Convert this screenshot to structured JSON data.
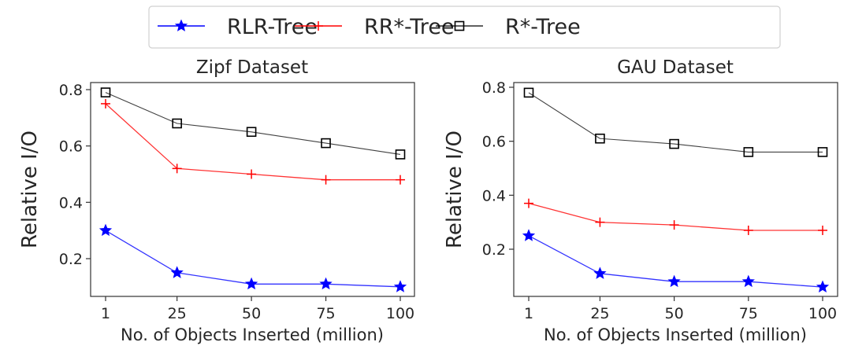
{
  "legend": {
    "placement": "top-center",
    "entries": [
      {
        "label": "RLR-Tree",
        "color": "#0000ff",
        "marker": "star-icon"
      },
      {
        "label": "RR*-Tree",
        "color": "#ff0000",
        "marker": "plus-icon"
      },
      {
        "label": "R*-Tree",
        "color": "#000000",
        "marker": "square-icon"
      }
    ]
  },
  "chart_data": [
    {
      "type": "line",
      "title": "Zipf Dataset",
      "xlabel": "No. of Objects Inserted (million)",
      "ylabel": "Relative I/O",
      "categories": [
        "1",
        "25",
        "50",
        "75",
        "100"
      ],
      "yticks": [
        0.2,
        0.4,
        0.6,
        0.8
      ],
      "ylim": [
        0.06,
        0.83
      ],
      "grid": false,
      "series": [
        {
          "name": "RLR-Tree",
          "color": "#0000ff",
          "marker": "star",
          "values": [
            0.3,
            0.15,
            0.11,
            0.11,
            0.1
          ]
        },
        {
          "name": "RR*-Tree",
          "color": "#ff0000",
          "marker": "plus",
          "values": [
            0.75,
            0.52,
            0.5,
            0.48,
            0.48
          ]
        },
        {
          "name": "R*-Tree",
          "color": "#000000",
          "marker": "square",
          "values": [
            0.79,
            0.68,
            0.65,
            0.61,
            0.57
          ]
        }
      ]
    },
    {
      "type": "line",
      "title": "GAU Dataset",
      "xlabel": "No. of Objects Inserted (million)",
      "ylabel": "Relative I/O",
      "categories": [
        "1",
        "25",
        "50",
        "75",
        "100"
      ],
      "yticks": [
        0.2,
        0.4,
        0.6,
        0.8
      ],
      "ylim": [
        0.03,
        0.82
      ],
      "grid": false,
      "series": [
        {
          "name": "RLR-Tree",
          "color": "#0000ff",
          "marker": "star",
          "values": [
            0.25,
            0.11,
            0.08,
            0.08,
            0.06
          ]
        },
        {
          "name": "RR*-Tree",
          "color": "#ff0000",
          "marker": "plus",
          "values": [
            0.37,
            0.3,
            0.29,
            0.27,
            0.27
          ]
        },
        {
          "name": "R*-Tree",
          "color": "#000000",
          "marker": "square",
          "values": [
            0.78,
            0.61,
            0.59,
            0.56,
            0.56
          ]
        }
      ]
    }
  ]
}
